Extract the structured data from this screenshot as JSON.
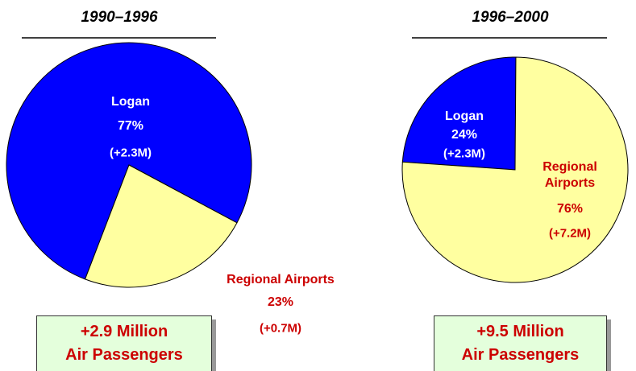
{
  "chart_data": [
    {
      "type": "pie",
      "title": "1990–1996",
      "categories": [
        "Logan",
        "Regional Airports"
      ],
      "values": [
        77,
        23
      ],
      "value_labels": [
        "77%",
        "23%"
      ],
      "change_labels": [
        "(+2.3M)",
        "(+0.7M)"
      ],
      "colors": [
        "#0000ff",
        "#ffffa0"
      ],
      "label_colors": [
        "#ffffff",
        "#cc0000"
      ],
      "total_label": [
        "+2.9 Million",
        "Air Passengers"
      ]
    },
    {
      "type": "pie",
      "title": "1996–2000",
      "categories": [
        "Logan",
        "Regional Airports"
      ],
      "values": [
        24,
        76
      ],
      "value_labels": [
        "24%",
        "76%"
      ],
      "change_labels": [
        "(+2.3M)",
        "(+7.2M)"
      ],
      "colors": [
        "#0000ff",
        "#ffffa0"
      ],
      "label_colors": [
        "#ffffff",
        "#cc0000"
      ],
      "total_label": [
        "+9.5 Million",
        "Air Passengers"
      ]
    }
  ]
}
